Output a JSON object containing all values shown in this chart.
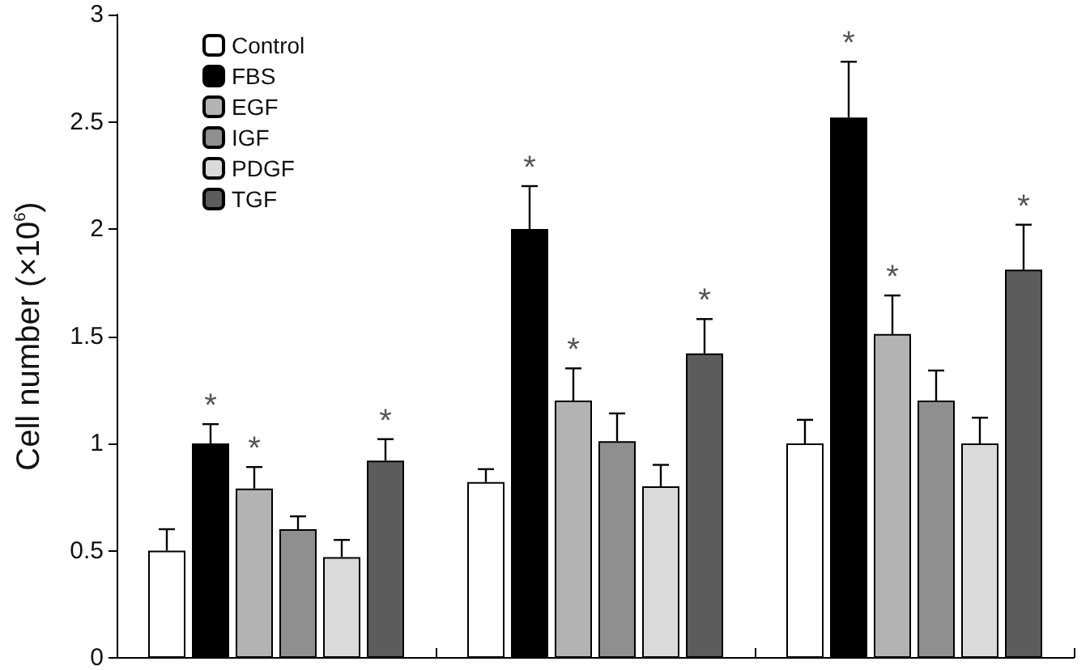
{
  "chart_data": {
    "type": "bar",
    "ylabel": "Cell number (×10$^{6}$)",
    "categories": [
      null,
      null,
      null
    ],
    "series": [
      {
        "name": "Control",
        "color": "#ffffff",
        "values": [
          0.5,
          0.82,
          1.0
        ],
        "errors": [
          0.1,
          0.06,
          0.11
        ]
      },
      {
        "name": "FBS",
        "color": "#000000",
        "values": [
          1.0,
          2.0,
          2.52
        ],
        "errors": [
          0.09,
          0.2,
          0.26
        ],
        "value_labels": [
          "*",
          "*",
          "*"
        ]
      },
      {
        "name": "EGF",
        "color": "#b3b3b3",
        "values": [
          0.79,
          1.2,
          1.51
        ],
        "errors": [
          0.1,
          0.15,
          0.18
        ],
        "value_labels": [
          "*",
          "*",
          "*"
        ]
      },
      {
        "name": "IGF",
        "color": "#8f8f8f",
        "values": [
          0.6,
          1.01,
          1.2
        ],
        "errors": [
          0.06,
          0.13,
          0.14
        ]
      },
      {
        "name": "PDGF",
        "color": "#dadada",
        "values": [
          0.47,
          0.8,
          1.0
        ],
        "errors": [
          0.08,
          0.1,
          0.12
        ]
      },
      {
        "name": "TGF",
        "color": "#5c5c5c",
        "values": [
          0.92,
          1.42,
          1.81
        ],
        "errors": [
          0.1,
          0.16,
          0.21
        ],
        "value_labels": [
          "*",
          "*",
          "*"
        ]
      }
    ],
    "ylim": [
      0,
      3
    ],
    "yticks": [
      0,
      0.5,
      1,
      1.5,
      2,
      2.5,
      3
    ],
    "grid": false,
    "legend": "top left",
    "tick_labels": "y"
  }
}
